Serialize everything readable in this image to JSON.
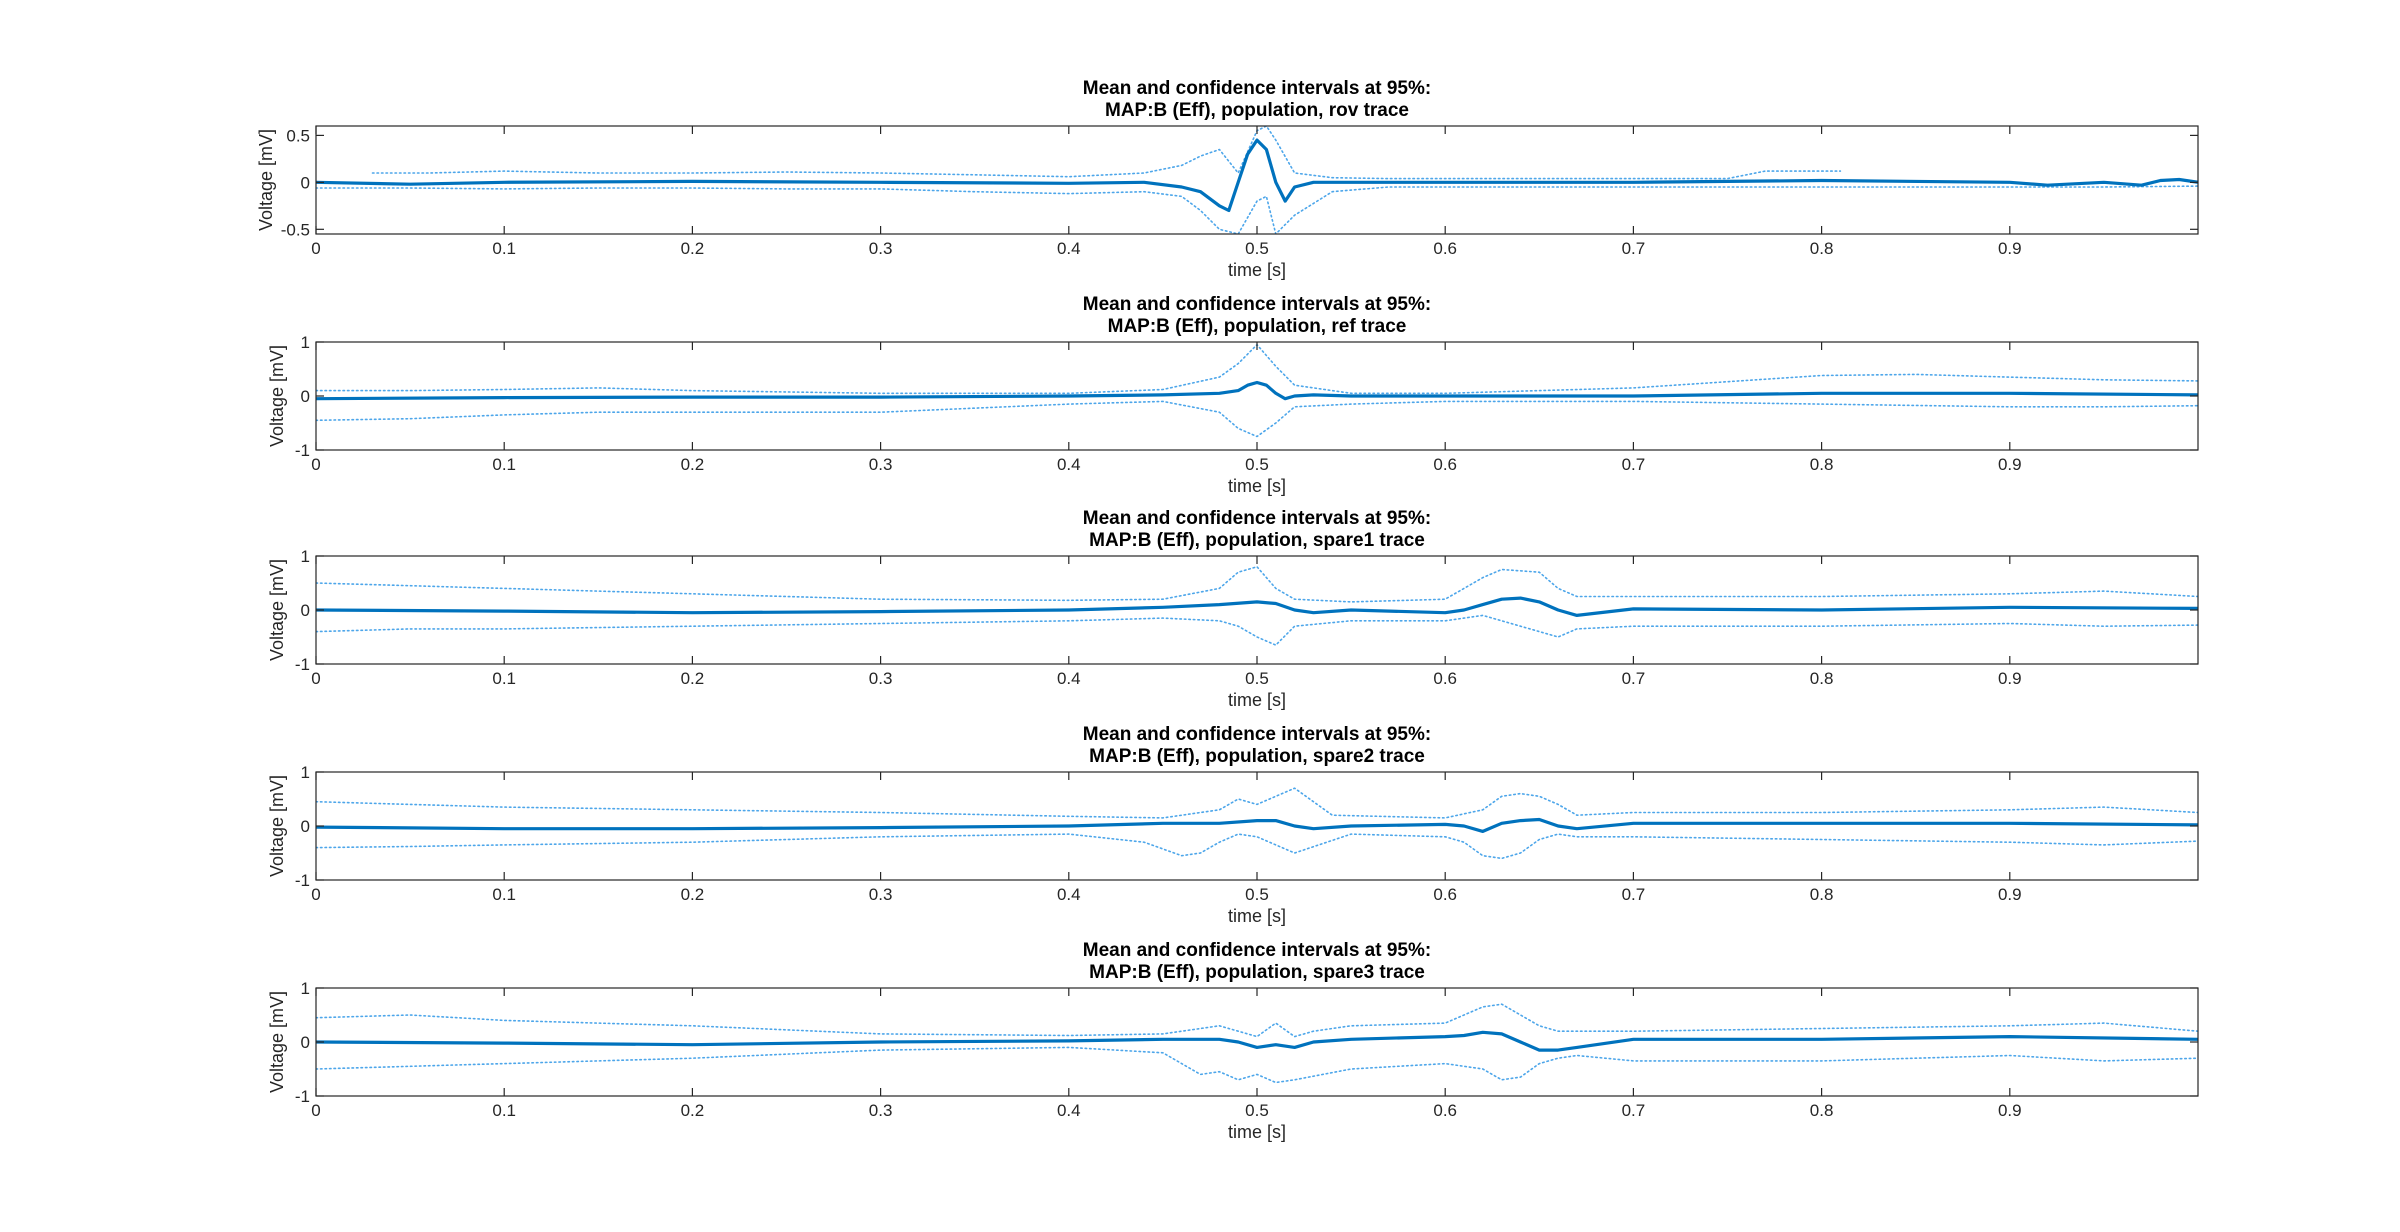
{
  "figure": {
    "background": "#ffffff"
  },
  "style": {
    "mean_color": "#0072bd",
    "ci_color": "#4da6ea",
    "axis_color": "#262626"
  },
  "chart_data": [
    {
      "type": "line",
      "title": [
        "Mean and confidence intervals at 95%:",
        "MAP:B (Eff), population, rov trace"
      ],
      "xlabel": "time [s]",
      "ylabel": "Voltage [mV]",
      "xlim": [
        0,
        1
      ],
      "ylim": [
        -0.55,
        0.6
      ],
      "xticks": [
        0,
        0.1,
        0.2,
        0.3,
        0.4,
        0.5,
        0.6,
        0.7,
        0.8,
        0.9
      ],
      "xtick_labels": [
        "0",
        "0.1",
        "0.2",
        "0.3",
        "0.4",
        "0.5",
        "0.6",
        "0.7",
        "0.8",
        "0.9"
      ],
      "yticks": [
        -0.5,
        0,
        0.5
      ],
      "ytick_labels": [
        "-0.5",
        "0",
        "0.5"
      ],
      "grid": false,
      "series": [
        {
          "role": "upper-ci",
          "x": [
            0.03,
            0.06,
            0.1,
            0.15,
            0.2,
            0.25,
            0.3,
            0.35,
            0.4,
            0.44,
            0.46,
            0.47,
            0.48,
            0.49,
            0.5,
            0.505,
            0.51,
            0.52,
            0.54,
            0.57,
            0.6,
            0.65,
            0.7,
            0.75,
            0.77,
            0.81
          ],
          "y": [
            0.1,
            0.1,
            0.12,
            0.1,
            0.1,
            0.11,
            0.1,
            0.08,
            0.06,
            0.1,
            0.18,
            0.28,
            0.35,
            0.1,
            0.55,
            0.6,
            0.45,
            0.1,
            0.05,
            0.04,
            0.04,
            0.04,
            0.04,
            0.04,
            0.12,
            0.12
          ]
        },
        {
          "role": "lower-ci",
          "x": [
            0.0,
            0.05,
            0.1,
            0.15,
            0.2,
            0.25,
            0.3,
            0.35,
            0.4,
            0.44,
            0.46,
            0.47,
            0.48,
            0.49,
            0.5,
            0.505,
            0.51,
            0.52,
            0.54,
            0.57,
            0.6,
            0.7,
            0.8,
            0.9,
            0.95,
            1.0
          ],
          "y": [
            -0.06,
            -0.06,
            -0.07,
            -0.06,
            -0.06,
            -0.07,
            -0.07,
            -0.1,
            -0.12,
            -0.1,
            -0.15,
            -0.3,
            -0.5,
            -0.55,
            -0.2,
            -0.15,
            -0.55,
            -0.35,
            -0.1,
            -0.05,
            -0.05,
            -0.05,
            -0.05,
            -0.05,
            -0.05,
            -0.04
          ]
        },
        {
          "role": "mean",
          "x": [
            0.0,
            0.05,
            0.1,
            0.2,
            0.3,
            0.4,
            0.44,
            0.46,
            0.47,
            0.48,
            0.485,
            0.49,
            0.495,
            0.5,
            0.505,
            0.51,
            0.515,
            0.52,
            0.53,
            0.55,
            0.6,
            0.7,
            0.8,
            0.9,
            0.92,
            0.95,
            0.97,
            0.98,
            0.99,
            1.0
          ],
          "y": [
            0.0,
            -0.02,
            0.0,
            0.01,
            0.0,
            -0.01,
            0.0,
            -0.05,
            -0.1,
            -0.25,
            -0.3,
            0.0,
            0.3,
            0.45,
            0.35,
            0.0,
            -0.2,
            -0.05,
            0.0,
            0.0,
            0.0,
            0.0,
            0.02,
            0.0,
            -0.03,
            0.0,
            -0.03,
            0.02,
            0.03,
            0.0
          ]
        }
      ]
    },
    {
      "type": "line",
      "title": [
        "Mean and confidence intervals at 95%:",
        "MAP:B (Eff), population, ref trace"
      ],
      "xlabel": "time [s]",
      "ylabel": "Voltage [mV]",
      "xlim": [
        0,
        1
      ],
      "ylim": [
        -1,
        1
      ],
      "xticks": [
        0,
        0.1,
        0.2,
        0.3,
        0.4,
        0.5,
        0.6,
        0.7,
        0.8,
        0.9
      ],
      "xtick_labels": [
        "0",
        "0.1",
        "0.2",
        "0.3",
        "0.4",
        "0.5",
        "0.6",
        "0.7",
        "0.8",
        "0.9"
      ],
      "yticks": [
        -1,
        0,
        1
      ],
      "ytick_labels": [
        "-1",
        "0",
        "1"
      ],
      "grid": false,
      "series": [
        {
          "role": "upper-ci",
          "x": [
            0.0,
            0.05,
            0.1,
            0.15,
            0.2,
            0.3,
            0.4,
            0.45,
            0.48,
            0.49,
            0.5,
            0.51,
            0.52,
            0.55,
            0.6,
            0.7,
            0.8,
            0.85,
            0.9,
            0.95,
            1.0
          ],
          "y": [
            0.1,
            0.1,
            0.12,
            0.15,
            0.1,
            0.05,
            0.05,
            0.12,
            0.35,
            0.6,
            0.95,
            0.55,
            0.2,
            0.05,
            0.05,
            0.15,
            0.38,
            0.4,
            0.35,
            0.3,
            0.28
          ]
        },
        {
          "role": "lower-ci",
          "x": [
            0.0,
            0.05,
            0.1,
            0.15,
            0.2,
            0.3,
            0.4,
            0.45,
            0.48,
            0.49,
            0.5,
            0.51,
            0.52,
            0.55,
            0.6,
            0.7,
            0.8,
            0.9,
            0.95,
            1.0
          ],
          "y": [
            -0.45,
            -0.42,
            -0.35,
            -0.3,
            -0.3,
            -0.3,
            -0.15,
            -0.1,
            -0.3,
            -0.6,
            -0.75,
            -0.5,
            -0.2,
            -0.15,
            -0.1,
            -0.1,
            -0.15,
            -0.2,
            -0.2,
            -0.18
          ]
        },
        {
          "role": "mean",
          "x": [
            0.0,
            0.1,
            0.2,
            0.3,
            0.4,
            0.45,
            0.48,
            0.49,
            0.495,
            0.5,
            0.505,
            0.51,
            0.515,
            0.52,
            0.53,
            0.55,
            0.6,
            0.7,
            0.8,
            0.9,
            1.0
          ],
          "y": [
            -0.05,
            -0.03,
            -0.02,
            -0.02,
            0.0,
            0.02,
            0.05,
            0.1,
            0.2,
            0.25,
            0.2,
            0.05,
            -0.05,
            0.0,
            0.02,
            0.0,
            0.0,
            0.0,
            0.05,
            0.05,
            0.02
          ]
        }
      ]
    },
    {
      "type": "line",
      "title": [
        "Mean and confidence intervals at 95%:",
        "MAP:B (Eff), population, spare1 trace"
      ],
      "xlabel": "time [s]",
      "ylabel": "Voltage [mV]",
      "xlim": [
        0,
        1
      ],
      "ylim": [
        -1,
        1
      ],
      "xticks": [
        0,
        0.1,
        0.2,
        0.3,
        0.4,
        0.5,
        0.6,
        0.7,
        0.8,
        0.9
      ],
      "xtick_labels": [
        "0",
        "0.1",
        "0.2",
        "0.3",
        "0.4",
        "0.5",
        "0.6",
        "0.7",
        "0.8",
        "0.9"
      ],
      "yticks": [
        -1,
        0,
        1
      ],
      "ytick_labels": [
        "-1",
        "0",
        "1"
      ],
      "grid": false,
      "series": [
        {
          "role": "upper-ci",
          "x": [
            0.0,
            0.05,
            0.1,
            0.2,
            0.3,
            0.4,
            0.45,
            0.48,
            0.49,
            0.5,
            0.51,
            0.52,
            0.55,
            0.6,
            0.62,
            0.63,
            0.65,
            0.66,
            0.67,
            0.7,
            0.8,
            0.9,
            0.95,
            1.0
          ],
          "y": [
            0.5,
            0.45,
            0.4,
            0.3,
            0.2,
            0.18,
            0.2,
            0.4,
            0.7,
            0.8,
            0.4,
            0.2,
            0.15,
            0.2,
            0.6,
            0.75,
            0.7,
            0.4,
            0.25,
            0.25,
            0.25,
            0.3,
            0.35,
            0.25
          ]
        },
        {
          "role": "lower-ci",
          "x": [
            0.0,
            0.05,
            0.1,
            0.2,
            0.3,
            0.4,
            0.45,
            0.48,
            0.49,
            0.5,
            0.51,
            0.52,
            0.55,
            0.6,
            0.62,
            0.63,
            0.65,
            0.66,
            0.67,
            0.7,
            0.8,
            0.9,
            0.95,
            1.0
          ],
          "y": [
            -0.4,
            -0.35,
            -0.35,
            -0.3,
            -0.25,
            -0.2,
            -0.15,
            -0.2,
            -0.3,
            -0.5,
            -0.65,
            -0.3,
            -0.2,
            -0.2,
            -0.1,
            -0.2,
            -0.4,
            -0.5,
            -0.35,
            -0.3,
            -0.3,
            -0.25,
            -0.3,
            -0.28
          ]
        },
        {
          "role": "mean",
          "x": [
            0.0,
            0.1,
            0.2,
            0.3,
            0.4,
            0.45,
            0.48,
            0.5,
            0.51,
            0.52,
            0.53,
            0.55,
            0.6,
            0.61,
            0.62,
            0.63,
            0.64,
            0.65,
            0.66,
            0.67,
            0.7,
            0.8,
            0.9,
            1.0
          ],
          "y": [
            0.0,
            -0.02,
            -0.05,
            -0.03,
            0.0,
            0.05,
            0.1,
            0.15,
            0.12,
            0.0,
            -0.05,
            0.0,
            -0.05,
            0.0,
            0.1,
            0.2,
            0.22,
            0.15,
            0.0,
            -0.1,
            0.02,
            0.0,
            0.05,
            0.03
          ]
        }
      ]
    },
    {
      "type": "line",
      "title": [
        "Mean and confidence intervals at 95%:",
        "MAP:B (Eff), population, spare2 trace"
      ],
      "xlabel": "time [s]",
      "ylabel": "Voltage [mV]",
      "xlim": [
        0,
        1
      ],
      "ylim": [
        -1,
        1
      ],
      "xticks": [
        0,
        0.1,
        0.2,
        0.3,
        0.4,
        0.5,
        0.6,
        0.7,
        0.8,
        0.9
      ],
      "xtick_labels": [
        "0",
        "0.1",
        "0.2",
        "0.3",
        "0.4",
        "0.5",
        "0.6",
        "0.7",
        "0.8",
        "0.9"
      ],
      "yticks": [
        -1,
        0,
        1
      ],
      "ytick_labels": [
        "-1",
        "0",
        "1"
      ],
      "grid": false,
      "series": [
        {
          "role": "upper-ci",
          "x": [
            0.0,
            0.05,
            0.1,
            0.2,
            0.3,
            0.4,
            0.45,
            0.48,
            0.49,
            0.5,
            0.51,
            0.52,
            0.54,
            0.6,
            0.62,
            0.63,
            0.64,
            0.65,
            0.66,
            0.67,
            0.7,
            0.8,
            0.9,
            0.95,
            1.0
          ],
          "y": [
            0.45,
            0.4,
            0.35,
            0.3,
            0.25,
            0.18,
            0.15,
            0.3,
            0.5,
            0.4,
            0.55,
            0.7,
            0.2,
            0.15,
            0.3,
            0.55,
            0.6,
            0.55,
            0.4,
            0.2,
            0.25,
            0.25,
            0.3,
            0.35,
            0.25
          ]
        },
        {
          "role": "lower-ci",
          "x": [
            0.0,
            0.05,
            0.1,
            0.2,
            0.3,
            0.4,
            0.44,
            0.46,
            0.47,
            0.48,
            0.49,
            0.5,
            0.51,
            0.52,
            0.55,
            0.6,
            0.61,
            0.62,
            0.63,
            0.64,
            0.65,
            0.66,
            0.67,
            0.7,
            0.8,
            0.9,
            0.95,
            1.0
          ],
          "y": [
            -0.4,
            -0.38,
            -0.35,
            -0.3,
            -0.2,
            -0.15,
            -0.3,
            -0.55,
            -0.5,
            -0.3,
            -0.15,
            -0.2,
            -0.35,
            -0.5,
            -0.15,
            -0.2,
            -0.3,
            -0.55,
            -0.6,
            -0.5,
            -0.25,
            -0.15,
            -0.2,
            -0.2,
            -0.25,
            -0.3,
            -0.35,
            -0.28
          ]
        },
        {
          "role": "mean",
          "x": [
            0.0,
            0.1,
            0.2,
            0.3,
            0.4,
            0.45,
            0.48,
            0.5,
            0.51,
            0.52,
            0.53,
            0.55,
            0.6,
            0.61,
            0.62,
            0.63,
            0.64,
            0.65,
            0.66,
            0.67,
            0.7,
            0.8,
            0.9,
            1.0
          ],
          "y": [
            -0.02,
            -0.05,
            -0.05,
            -0.03,
            0.0,
            0.05,
            0.05,
            0.1,
            0.1,
            0.0,
            -0.05,
            0.0,
            0.03,
            0.0,
            -0.1,
            0.05,
            0.1,
            0.12,
            0.0,
            -0.05,
            0.05,
            0.05,
            0.05,
            0.02
          ]
        }
      ]
    },
    {
      "type": "line",
      "title": [
        "Mean and confidence intervals at 95%:",
        "MAP:B (Eff), population, spare3 trace"
      ],
      "xlabel": "time [s]",
      "ylabel": "Voltage [mV]",
      "xlim": [
        0,
        1
      ],
      "ylim": [
        -1,
        1
      ],
      "xticks": [
        0,
        0.1,
        0.2,
        0.3,
        0.4,
        0.5,
        0.6,
        0.7,
        0.8,
        0.9
      ],
      "xtick_labels": [
        "0",
        "0.1",
        "0.2",
        "0.3",
        "0.4",
        "0.5",
        "0.6",
        "0.7",
        "0.8",
        "0.9"
      ],
      "yticks": [
        -1,
        0,
        1
      ],
      "ytick_labels": [
        "-1",
        "0",
        "1"
      ],
      "grid": false,
      "series": [
        {
          "role": "upper-ci",
          "x": [
            0.0,
            0.05,
            0.1,
            0.2,
            0.3,
            0.4,
            0.45,
            0.48,
            0.5,
            0.51,
            0.52,
            0.53,
            0.55,
            0.6,
            0.62,
            0.63,
            0.64,
            0.65,
            0.66,
            0.67,
            0.7,
            0.8,
            0.9,
            0.95,
            1.0
          ],
          "y": [
            0.45,
            0.5,
            0.4,
            0.3,
            0.15,
            0.12,
            0.15,
            0.3,
            0.1,
            0.35,
            0.1,
            0.2,
            0.3,
            0.35,
            0.65,
            0.7,
            0.5,
            0.3,
            0.2,
            0.2,
            0.2,
            0.25,
            0.3,
            0.35,
            0.2
          ]
        },
        {
          "role": "lower-ci",
          "x": [
            0.0,
            0.05,
            0.1,
            0.2,
            0.3,
            0.4,
            0.45,
            0.47,
            0.48,
            0.49,
            0.5,
            0.51,
            0.52,
            0.55,
            0.6,
            0.62,
            0.63,
            0.64,
            0.65,
            0.66,
            0.67,
            0.7,
            0.8,
            0.9,
            0.95,
            1.0
          ],
          "y": [
            -0.5,
            -0.45,
            -0.4,
            -0.3,
            -0.15,
            -0.1,
            -0.2,
            -0.6,
            -0.55,
            -0.7,
            -0.6,
            -0.75,
            -0.7,
            -0.5,
            -0.4,
            -0.5,
            -0.7,
            -0.65,
            -0.4,
            -0.3,
            -0.25,
            -0.35,
            -0.35,
            -0.25,
            -0.35,
            -0.3
          ]
        },
        {
          "role": "mean",
          "x": [
            0.0,
            0.1,
            0.2,
            0.3,
            0.4,
            0.45,
            0.48,
            0.49,
            0.5,
            0.51,
            0.52,
            0.53,
            0.55,
            0.6,
            0.61,
            0.62,
            0.63,
            0.64,
            0.65,
            0.66,
            0.67,
            0.7,
            0.8,
            0.9,
            1.0
          ],
          "y": [
            0.0,
            -0.02,
            -0.05,
            0.0,
            0.02,
            0.05,
            0.05,
            0.0,
            -0.1,
            -0.05,
            -0.1,
            0.0,
            0.05,
            0.1,
            0.12,
            0.18,
            0.15,
            0.0,
            -0.15,
            -0.15,
            -0.1,
            0.05,
            0.05,
            0.1,
            0.05
          ]
        }
      ]
    }
  ]
}
